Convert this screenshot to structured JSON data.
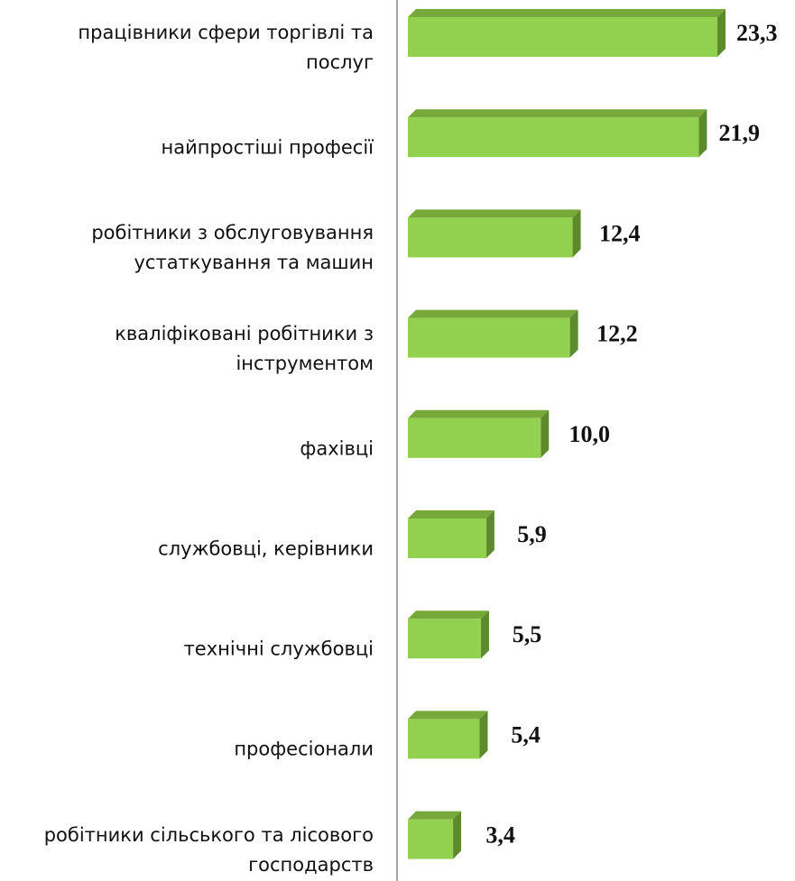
{
  "chart_data": {
    "type": "bar",
    "categories": [
      "працівники сфери торгівлі та послуг",
      "найпростіші професії",
      "робітники з обслуговування устаткування та машин",
      "кваліфіковані робітники з інструментом",
      "фахівці",
      "службовці, керівники",
      "технічні службовці",
      "професіонали",
      "робітники сільського та лісового господарств"
    ],
    "values": [
      23.3,
      21.9,
      12.4,
      12.2,
      10.0,
      5.9,
      5.5,
      5.4,
      3.4
    ],
    "value_labels": [
      "23,3",
      "21,9",
      "12,4",
      "12,2",
      "10,0",
      "5,9",
      "5,5",
      "5,4",
      "3,4"
    ],
    "color": "#92d050"
  }
}
